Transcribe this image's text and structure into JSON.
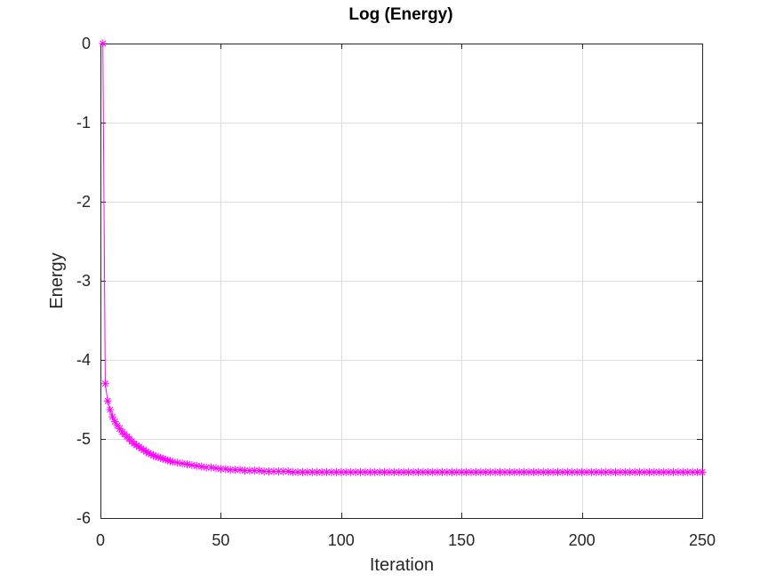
{
  "chart_data": {
    "type": "line",
    "title": "Log (Energy)",
    "xlabel": "Iteration",
    "ylabel": "Energy",
    "xlim": [
      0,
      250
    ],
    "ylim": [
      -6,
      0
    ],
    "xticks": [
      0,
      50,
      100,
      150,
      200,
      250
    ],
    "yticks": [
      0,
      -1,
      -2,
      -3,
      -4,
      -5,
      -6
    ],
    "grid": true,
    "series": [
      {
        "marker": "asterisk",
        "color": "#ff00ff",
        "x": [
          1,
          2,
          3,
          4,
          5,
          6,
          7,
          8,
          9,
          10,
          11,
          12,
          13,
          14,
          15,
          16,
          17,
          18,
          19,
          20,
          21,
          22,
          23,
          24,
          25,
          26,
          27,
          28,
          29,
          30,
          32,
          34,
          36,
          38,
          40,
          42,
          44,
          46,
          48,
          50,
          52,
          54,
          56,
          58,
          60,
          62,
          64,
          66,
          68,
          70,
          72,
          74,
          76,
          78,
          80,
          82,
          84,
          86,
          88,
          90,
          92,
          94,
          96,
          98,
          100,
          102,
          104,
          106,
          108,
          110,
          112,
          114,
          116,
          118,
          120,
          122,
          124,
          126,
          128,
          130,
          132,
          134,
          136,
          138,
          140,
          142,
          144,
          146,
          148,
          150,
          152,
          154,
          156,
          158,
          160,
          162,
          164,
          166,
          168,
          170,
          172,
          174,
          176,
          178,
          180,
          182,
          184,
          186,
          188,
          190,
          192,
          194,
          196,
          198,
          200,
          202,
          204,
          206,
          208,
          210,
          212,
          214,
          216,
          218,
          220,
          222,
          224,
          226,
          228,
          230,
          232,
          234,
          236,
          238,
          240,
          242,
          244,
          246,
          248,
          250
        ],
        "y": [
          0,
          -4.3,
          -4.52,
          -4.63,
          -4.72,
          -4.78,
          -4.83,
          -4.87,
          -4.91,
          -4.94,
          -4.97,
          -5.0,
          -5.03,
          -5.06,
          -5.08,
          -5.1,
          -5.12,
          -5.14,
          -5.16,
          -5.18,
          -5.19,
          -5.21,
          -5.22,
          -5.23,
          -5.24,
          -5.25,
          -5.26,
          -5.27,
          -5.28,
          -5.29,
          -5.3,
          -5.31,
          -5.32,
          -5.33,
          -5.34,
          -5.35,
          -5.36,
          -5.36,
          -5.37,
          -5.38,
          -5.38,
          -5.39,
          -5.39,
          -5.39,
          -5.4,
          -5.4,
          -5.4,
          -5.4,
          -5.41,
          -5.41,
          -5.41,
          -5.41,
          -5.41,
          -5.41,
          -5.42,
          -5.42,
          -5.42,
          -5.42,
          -5.42,
          -5.42,
          -5.42,
          -5.42,
          -5.42,
          -5.42,
          -5.42,
          -5.42,
          -5.42,
          -5.42,
          -5.42,
          -5.42,
          -5.42,
          -5.42,
          -5.42,
          -5.42,
          -5.42,
          -5.42,
          -5.42,
          -5.42,
          -5.42,
          -5.42,
          -5.42,
          -5.42,
          -5.42,
          -5.42,
          -5.42,
          -5.42,
          -5.42,
          -5.42,
          -5.42,
          -5.42,
          -5.42,
          -5.42,
          -5.42,
          -5.42,
          -5.42,
          -5.42,
          -5.42,
          -5.42,
          -5.42,
          -5.42,
          -5.42,
          -5.42,
          -5.42,
          -5.42,
          -5.42,
          -5.42,
          -5.42,
          -5.42,
          -5.42,
          -5.42,
          -5.42,
          -5.42,
          -5.42,
          -5.42,
          -5.42,
          -5.42,
          -5.42,
          -5.42,
          -5.42,
          -5.42,
          -5.42,
          -5.42,
          -5.42,
          -5.42,
          -5.42,
          -5.42,
          -5.42,
          -5.42,
          -5.42,
          -5.42,
          -5.42,
          -5.42,
          -5.42,
          -5.42,
          -5.42,
          -5.42,
          -5.42,
          -5.42,
          -5.42,
          -5.42
        ]
      }
    ]
  }
}
